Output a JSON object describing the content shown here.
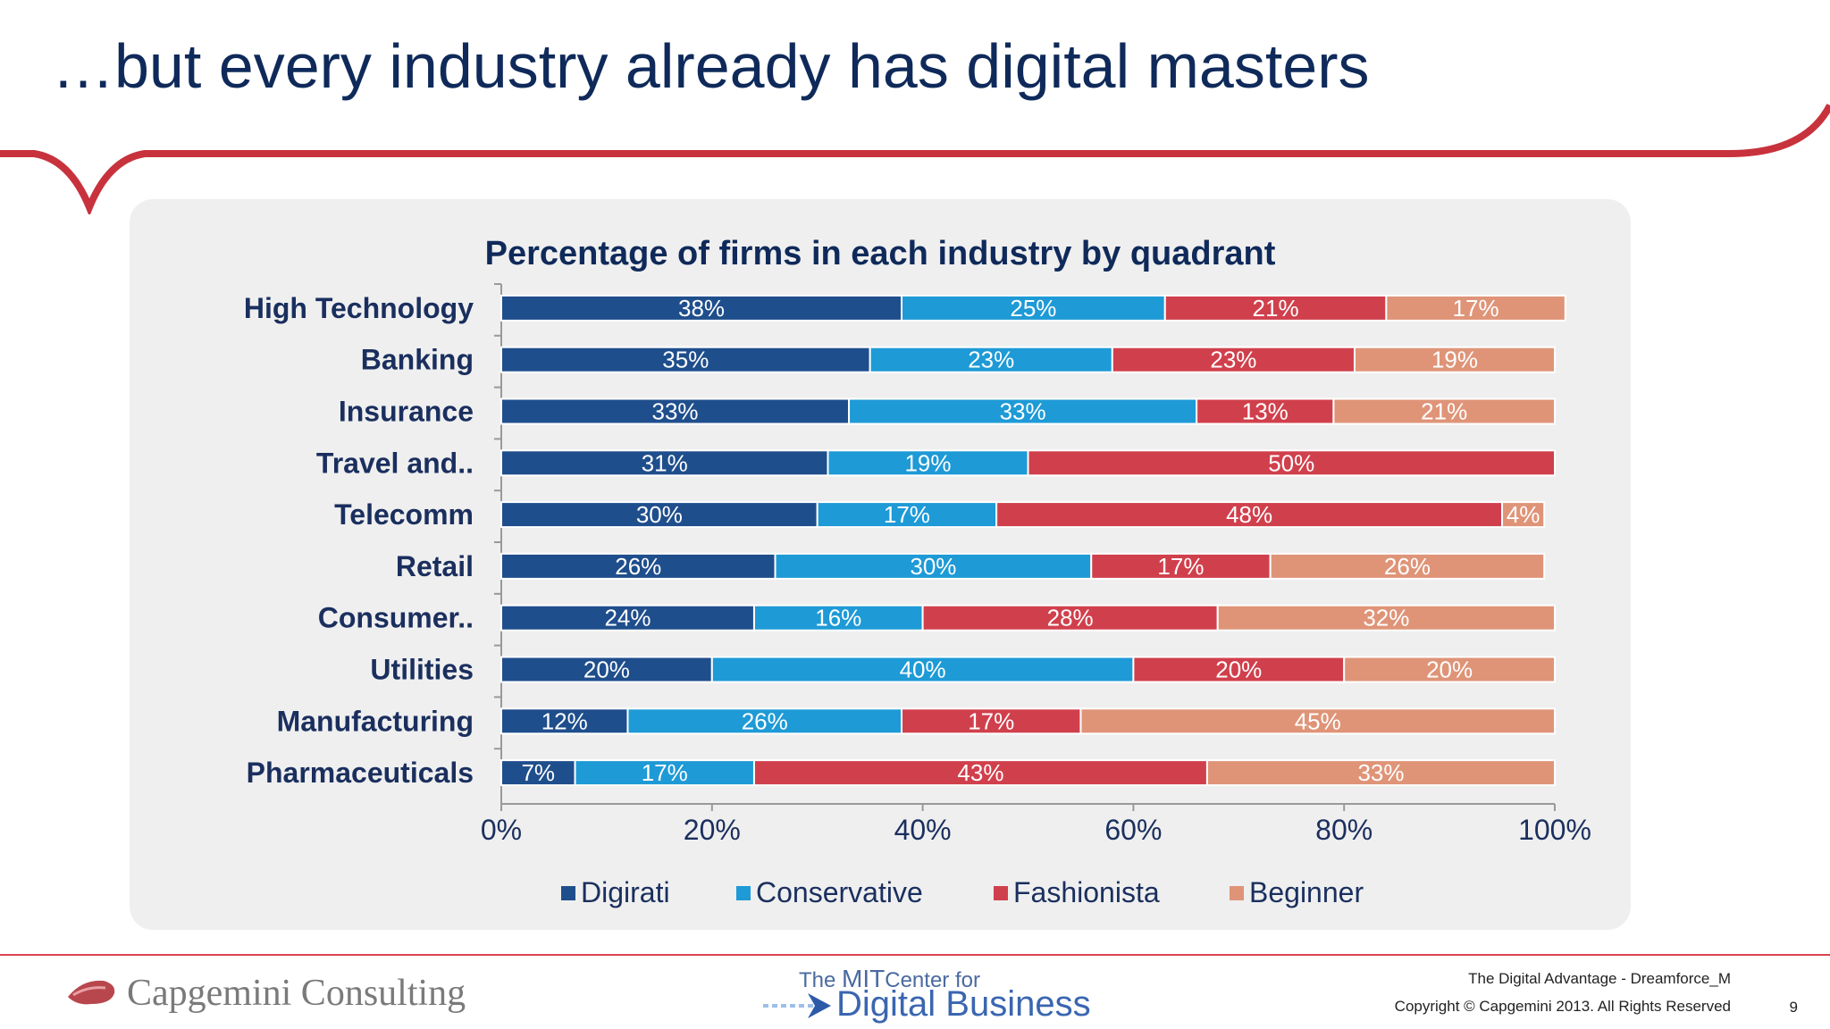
{
  "slide": {
    "title": "…but every industry already has digital masters",
    "accent_color": "#c8323d",
    "title_color": "#0f2a5a"
  },
  "chart_data": {
    "type": "bar",
    "orientation": "horizontal",
    "stacked": true,
    "title": "Percentage of firms in each industry by quadrant",
    "categories": [
      "High Technology",
      "Banking",
      "Insurance",
      "Travel and..",
      "Telecomm",
      "Retail",
      "Consumer..",
      "Utilities",
      "Manufacturing",
      "Pharmaceuticals"
    ],
    "series": [
      {
        "name": "Digirati",
        "color": "#1f4e8c",
        "values": [
          38,
          35,
          33,
          31,
          30,
          26,
          24,
          20,
          12,
          7
        ]
      },
      {
        "name": "Conservative",
        "color": "#1e9ad6",
        "values": [
          25,
          23,
          33,
          19,
          17,
          30,
          16,
          40,
          26,
          17
        ]
      },
      {
        "name": "Fashionista",
        "color": "#d0404c",
        "values": [
          21,
          23,
          13,
          50,
          48,
          17,
          28,
          20,
          17,
          43
        ]
      },
      {
        "name": "Beginner",
        "color": "#df9478",
        "values": [
          17,
          19,
          21,
          0,
          4,
          26,
          32,
          20,
          45,
          33
        ]
      }
    ],
    "value_suffix": "%",
    "xlim": [
      0,
      100
    ],
    "xticks": [
      "0%",
      "20%",
      "40%",
      "60%",
      "80%",
      "100%"
    ],
    "legend_position": "bottom",
    "grid": false
  },
  "footer": {
    "company_logo_text": "Capgemini Consulting",
    "partner_logo_top_prefix": "The ",
    "partner_logo_top_mit": "MIT",
    "partner_logo_top_suffix": "Center for",
    "partner_logo_bottom": "Digital Business",
    "doc_name": "The Digital Advantage - Dreamforce_M",
    "copyright": "Copyright © Capgemini 2013. All Rights Reserved",
    "page_number": "9"
  }
}
